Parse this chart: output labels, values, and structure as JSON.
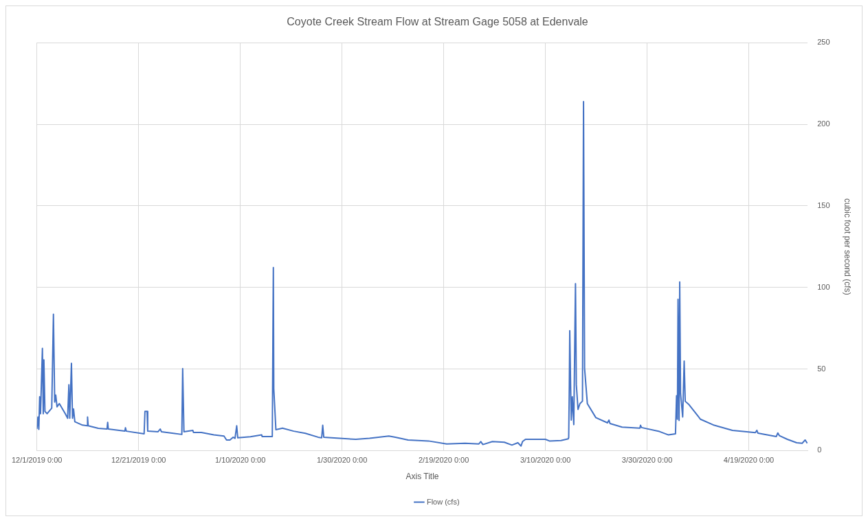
{
  "chart_data": {
    "type": "line",
    "title": "Coyote Creek Stream Flow at Stream Gage 5058 at Edenvale",
    "xlabel": "Axis Title",
    "y2label": "cubic foot per second (cfs)",
    "x": [
      "2019-12-01T00:00",
      "2019-12-01T05:00",
      "2019-12-01T09:00",
      "2019-12-01T13:00",
      "2019-12-01T17:00",
      "2019-12-02T02:00",
      "2019-12-02T06:00",
      "2019-12-02T09:00",
      "2019-12-02T14:00",
      "2019-12-03T00:00",
      "2019-12-03T22:00",
      "2019-12-04T06:00",
      "2019-12-04T12:00",
      "2019-12-04T17:00",
      "2019-12-04T23:00",
      "2019-12-05T10:00",
      "2019-12-06T14:00",
      "2019-12-07T01:00",
      "2019-12-07T07:00",
      "2019-12-07T11:00",
      "2019-12-07T19:00",
      "2019-12-08T00:00",
      "2019-12-08T05:00",
      "2019-12-08T11:00",
      "2019-12-09T23:00",
      "2019-12-10T22:00",
      "2019-12-10T23:00",
      "2019-12-11T02:00",
      "2019-12-13T02:00",
      "2019-12-14T19:00",
      "2019-12-14T22:00",
      "2019-12-15T01:00",
      "2019-12-18T07:00",
      "2019-12-18T10:00",
      "2019-12-18T14:00",
      "2019-12-22T02:00",
      "2019-12-22T06:00",
      "2019-12-22T16:00",
      "2019-12-22T19:00",
      "2019-12-24T19:00",
      "2019-12-25T06:00",
      "2019-12-25T12:00",
      "2019-12-29T12:00",
      "2019-12-29T16:00",
      "2019-12-29T22:00",
      "2019-12-31T16:00",
      "2019-12-31T19:00",
      "2020-01-02T08:00",
      "2020-01-04T19:00",
      "2020-01-06T19:00",
      "2020-01-07T07:00",
      "2020-01-07T23:00",
      "2020-01-08T14:00",
      "2020-01-08T23:00",
      "2020-01-09T07:00",
      "2020-01-09T12:00",
      "2020-01-12T00:00",
      "2020-01-14T05:00",
      "2020-01-14T07:00",
      "2020-01-16T07:00",
      "2020-01-16T12:00",
      "2020-01-16T14:00",
      "2020-01-17T00:00",
      "2020-01-18T07:00",
      "2020-01-20T12:00",
      "2020-01-22T19:00",
      "2020-01-25T07:00",
      "2020-01-26T00:00",
      "2020-01-26T05:00",
      "2020-01-26T10:00",
      "2020-01-29T12:00",
      "2020-02-01T17:00",
      "2020-02-04T10:00",
      "2020-02-08T05:00",
      "2020-02-09T12:00",
      "2020-02-12T00:00",
      "2020-02-16T00:00",
      "2020-02-19T14:00",
      "2020-02-23T05:00",
      "2020-02-25T22:00",
      "2020-02-26T07:00",
      "2020-02-26T17:00",
      "2020-02-28T14:00",
      "2020-03-01T22:00",
      "2020-03-03T10:00",
      "2020-03-04T14:00",
      "2020-03-05T05:00",
      "2020-03-05T12:00",
      "2020-03-06T02:00",
      "2020-03-10T00:00",
      "2020-03-10T19:00",
      "2020-03-13T02:00",
      "2020-03-14T12:00",
      "2020-03-14T14:00",
      "2020-03-14T17:00",
      "2020-03-14T19:00",
      "2020-03-14T23:00",
      "2020-03-15T02:00",
      "2020-03-15T07:00",
      "2020-03-15T14:00",
      "2020-03-15T22:00",
      "2020-03-16T02:00",
      "2020-03-16T10:00",
      "2020-03-16T19:00",
      "2020-03-17T07:00",
      "2020-03-17T12:00",
      "2020-03-17T17:00",
      "2020-03-18T06:00",
      "2020-03-19T22:00",
      "2020-03-22T05:00",
      "2020-03-22T12:00",
      "2020-03-22T17:00",
      "2020-03-25T02:00",
      "2020-03-28T14:00",
      "2020-03-28T17:00",
      "2020-03-28T22:00",
      "2020-04-01T10:00",
      "2020-04-03T05:00",
      "2020-04-04T14:00",
      "2020-04-04T19:00",
      "2020-04-04T23:00",
      "2020-04-05T02:00",
      "2020-04-05T07:00",
      "2020-04-05T10:00",
      "2020-04-05T14:00",
      "2020-04-06T00:00",
      "2020-04-06T07:00",
      "2020-04-06T12:00",
      "2020-04-07T06:00",
      "2020-04-09T12:00",
      "2020-04-12T05:00",
      "2020-04-15T19:00",
      "2020-04-20T07:00",
      "2020-04-20T14:00",
      "2020-04-20T19:00",
      "2020-04-24T10:00",
      "2020-04-24T17:00",
      "2020-04-25T00:00",
      "2020-04-26T14:00",
      "2020-04-28T10:00",
      "2020-04-29T12:00",
      "2020-04-30T02:00",
      "2020-04-30T12:00"
    ],
    "series": [
      {
        "name": "Flow (cfs)",
        "color": "#4472c4",
        "axis": "y2",
        "values": [
          13.2,
          20.6,
          13,
          33,
          22.6,
          62.6,
          22.6,
          55.6,
          24,
          22.6,
          26,
          83.6,
          29.7,
          34,
          26.8,
          28.8,
          22.6,
          19.8,
          40.4,
          19.8,
          53.5,
          19.8,
          25.5,
          17.7,
          15.6,
          15.2,
          20.6,
          15.2,
          13.6,
          13.2,
          17.3,
          13.2,
          11.9,
          14,
          11.9,
          10.3,
          24,
          24,
          11.9,
          11.5,
          13.2,
          11.5,
          9.9,
          50.2,
          11.5,
          12.4,
          11.1,
          11.1,
          9.6,
          8.9,
          6.5,
          6.5,
          8.2,
          7.5,
          15.2,
          7.8,
          8.5,
          9.6,
          8.6,
          8.6,
          112.2,
          37.9,
          12.8,
          13.7,
          11.9,
          10.6,
          8.2,
          7.8,
          15.5,
          8.2,
          7.5,
          6.9,
          7.5,
          8.9,
          8.2,
          6.5,
          5.9,
          4.1,
          4.5,
          4.1,
          5.5,
          3.7,
          5.5,
          5.1,
          3.4,
          4.8,
          2.8,
          5.5,
          6.9,
          6.9,
          5.9,
          6.2,
          7.2,
          8,
          40.4,
          73.5,
          40.4,
          18.7,
          33,
          15.9,
          102.3,
          40.4,
          25.2,
          28.8,
          30.3,
          213.9,
          50.4,
          28.8,
          20.2,
          17,
          18.7,
          16.6,
          14.4,
          13.7,
          15.5,
          14.1,
          11.7,
          9.6,
          10.3,
          33.6,
          19.2,
          92.7,
          18.5,
          103.4,
          35,
          20.6,
          54.9,
          30.2,
          28.1,
          19.2,
          15.5,
          12.4,
          11,
          12.4,
          10.7,
          8.6,
          10.8,
          9.2,
          6.9,
          4.8,
          4.5,
          6.5,
          4.5
        ]
      }
    ],
    "xlim": [
      "2019-12-01T00:00",
      "2020-04-30T14:00"
    ],
    "xticks": [
      {
        "value": "2019-12-01T00:00",
        "label": "12/1/2019 0:00"
      },
      {
        "value": "2019-12-21T00:00",
        "label": "12/21/2019 0:00"
      },
      {
        "value": "2020-01-10T00:00",
        "label": "1/10/2020 0:00"
      },
      {
        "value": "2020-01-30T00:00",
        "label": "1/30/2020 0:00"
      },
      {
        "value": "2020-02-19T00:00",
        "label": "2/19/2020 0:00"
      },
      {
        "value": "2020-03-10T00:00",
        "label": "3/10/2020 0:00"
      },
      {
        "value": "2020-03-30T00:00",
        "label": "3/30/2020 0:00"
      },
      {
        "value": "2020-04-19T00:00",
        "label": "4/19/2020 0:00"
      }
    ],
    "y2lim": [
      0,
      250
    ],
    "y2ticks": [
      0,
      50,
      100,
      150,
      200,
      250
    ],
    "grid": true,
    "legend": "bottom",
    "marker": "none",
    "line_style": "solid"
  }
}
